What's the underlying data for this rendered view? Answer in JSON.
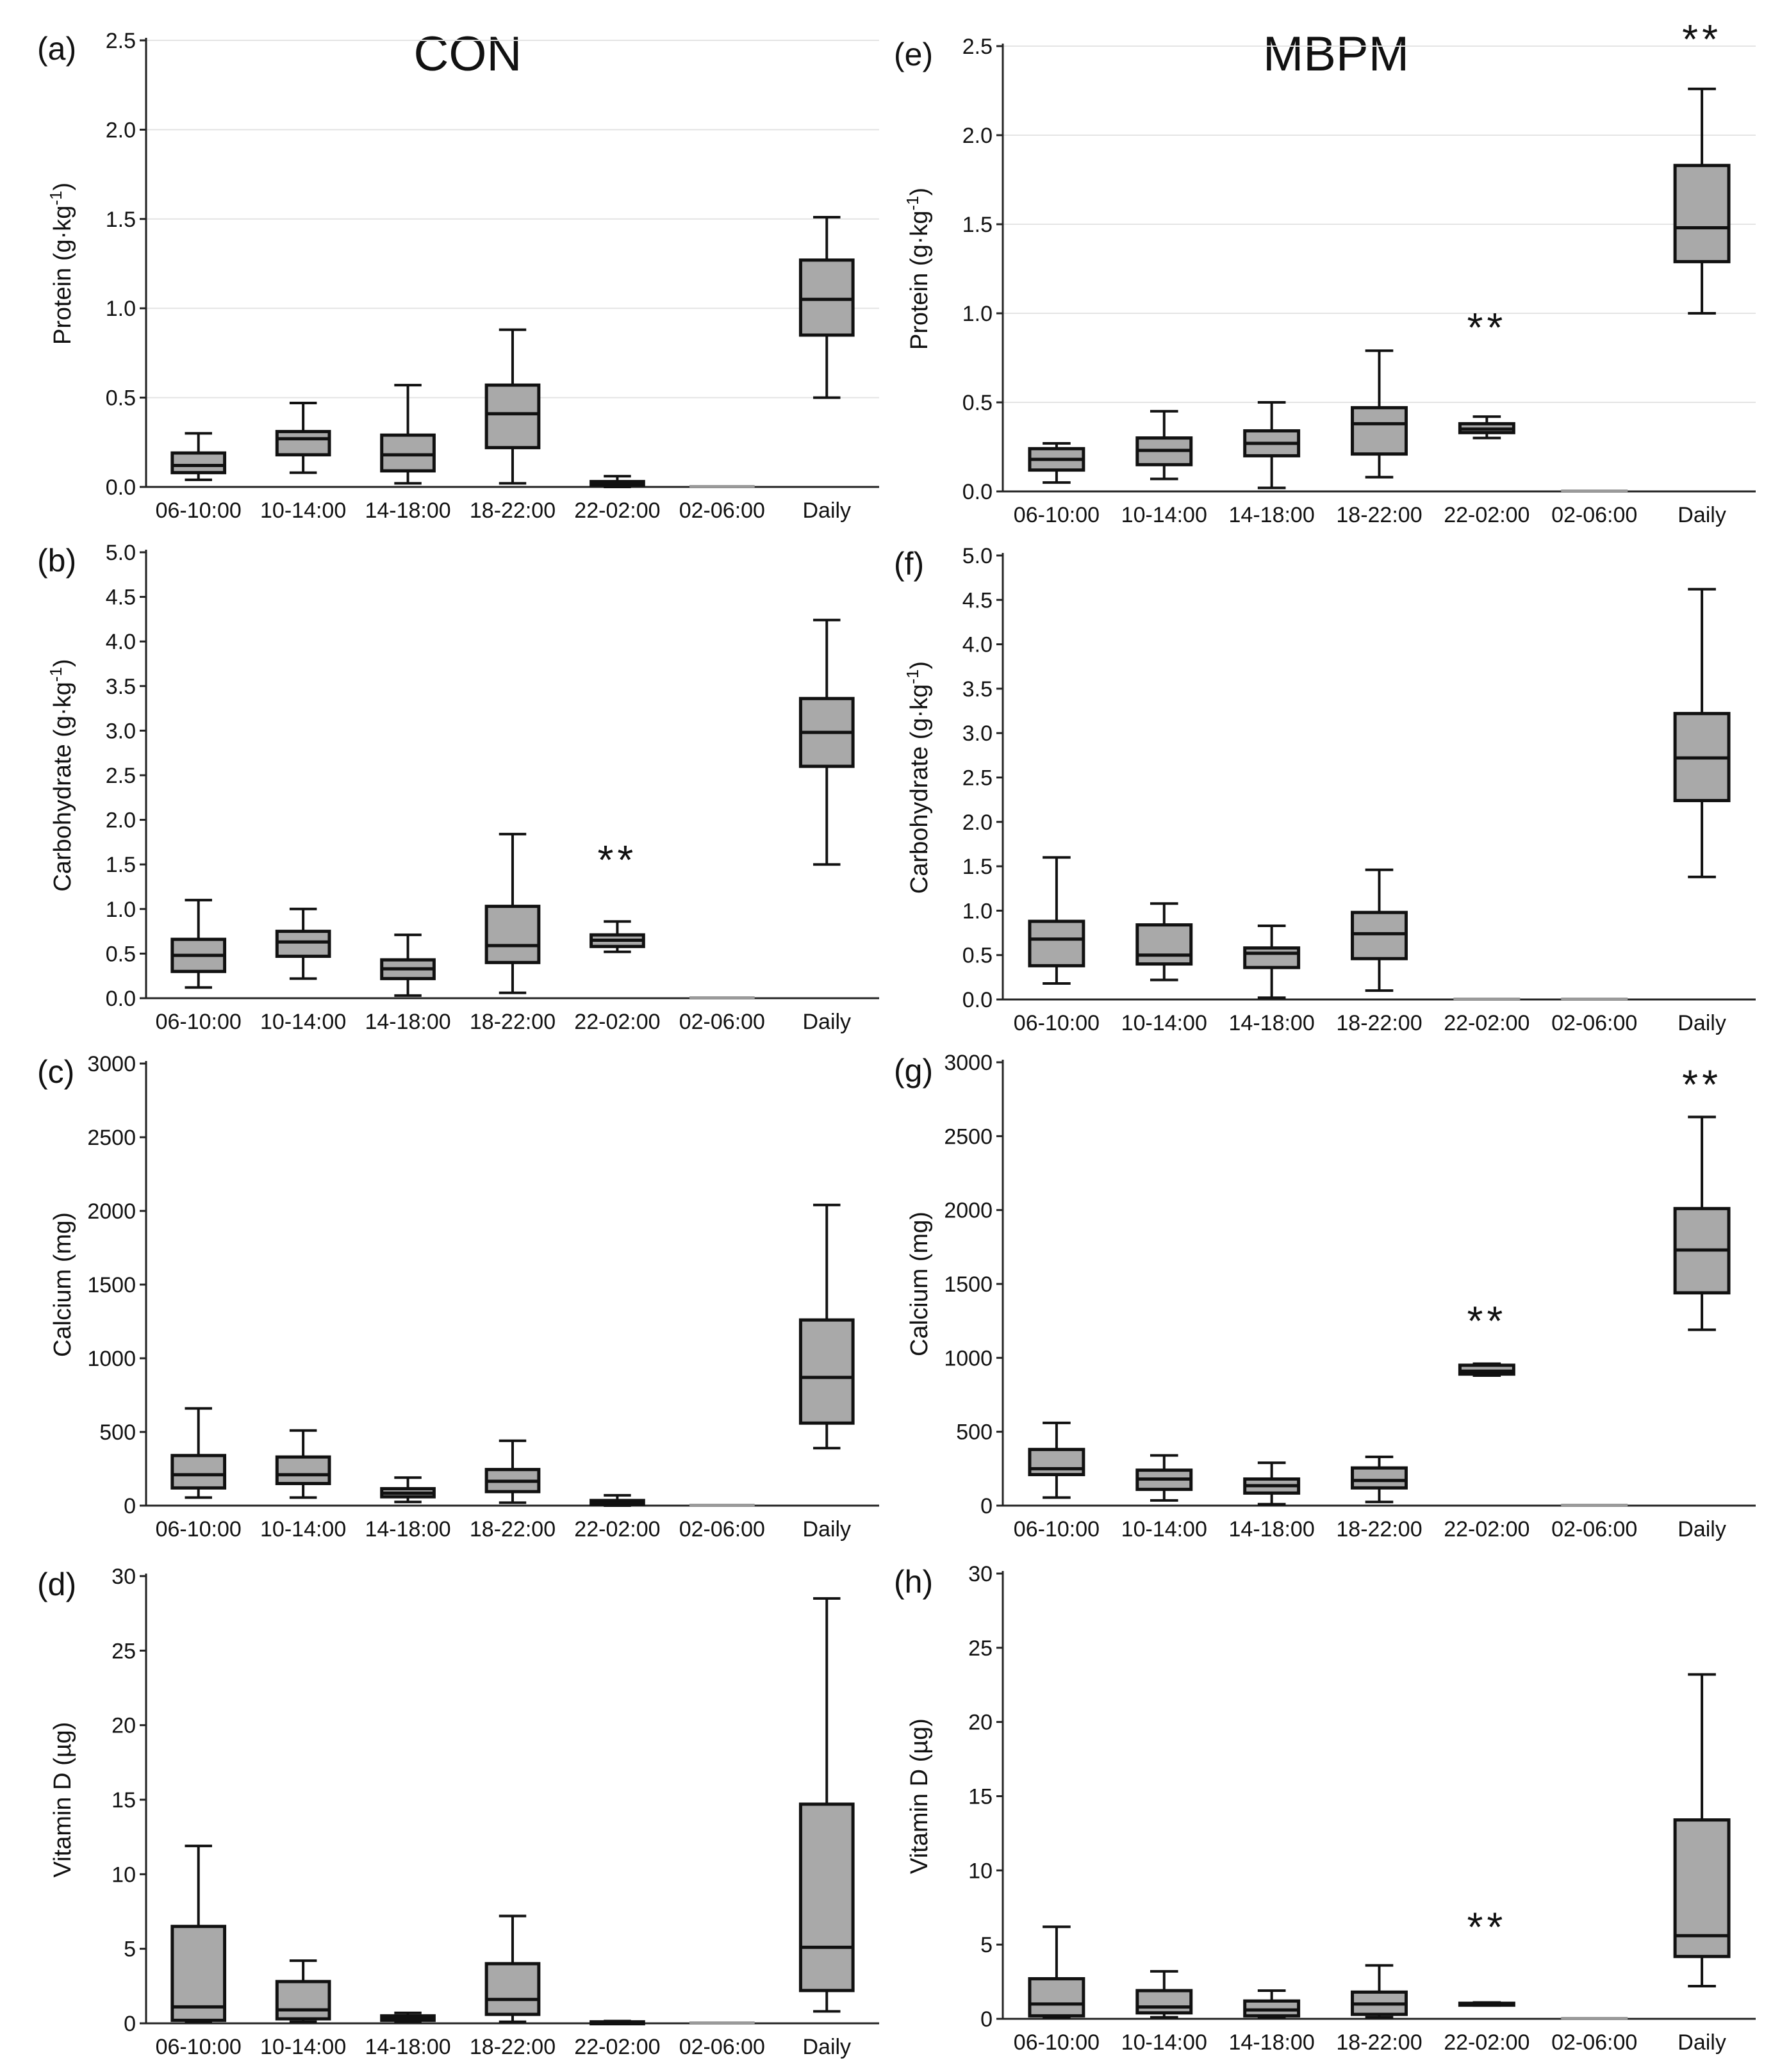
{
  "group_titles": [
    "CON",
    "MBPM"
  ],
  "chart_data": [
    {
      "type": "box",
      "panel": "(a)",
      "group": "CON",
      "ylabel": "Protein (g·kg",
      "ylabel_sup": "-1",
      "ylabel_tail": ")",
      "ylim": [
        0,
        2.5
      ],
      "yticks": [
        "0.0",
        "0.5",
        "1.0",
        "1.5",
        "2.0",
        "2.5"
      ],
      "grid": true,
      "categories": [
        "06-10:00",
        "10-14:00",
        "14-18:00",
        "18-22:00",
        "22-02:00",
        "02-06:00",
        "Daily"
      ],
      "boxes": [
        {
          "min": 0.04,
          "q1": 0.08,
          "median": 0.12,
          "q3": 0.19,
          "max": 0.3
        },
        {
          "min": 0.08,
          "q1": 0.18,
          "median": 0.27,
          "q3": 0.31,
          "max": 0.47
        },
        {
          "min": 0.02,
          "q1": 0.09,
          "median": 0.18,
          "q3": 0.29,
          "max": 0.57
        },
        {
          "min": 0.02,
          "q1": 0.22,
          "median": 0.41,
          "q3": 0.57,
          "max": 0.88
        },
        {
          "min": 0.0,
          "q1": 0.01,
          "median": 0.02,
          "q3": 0.03,
          "max": 0.06
        },
        {
          "min": 0.0,
          "q1": 0.0,
          "median": 0.0,
          "q3": 0.0,
          "max": 0.0
        },
        {
          "min": 0.5,
          "q1": 0.85,
          "median": 1.05,
          "q3": 1.27,
          "max": 1.51
        }
      ],
      "annotations": []
    },
    {
      "type": "box",
      "panel": "(b)",
      "group": "CON",
      "ylabel": "Carbohydrate (g·kg",
      "ylabel_sup": "-1",
      "ylabel_tail": ")",
      "ylim": [
        0,
        5
      ],
      "yticks": [
        "0.0",
        "0.5",
        "1.0",
        "1.5",
        "2.0",
        "2.5",
        "3.0",
        "3.5",
        "4.0",
        "4.5",
        "5.0"
      ],
      "grid": false,
      "categories": [
        "06-10:00",
        "10-14:00",
        "14-18:00",
        "18-22:00",
        "22-02:00",
        "02-06:00",
        "Daily"
      ],
      "boxes": [
        {
          "min": 0.12,
          "q1": 0.3,
          "median": 0.48,
          "q3": 0.66,
          "max": 1.1
        },
        {
          "min": 0.22,
          "q1": 0.47,
          "median": 0.63,
          "q3": 0.75,
          "max": 1.0
        },
        {
          "min": 0.03,
          "q1": 0.22,
          "median": 0.33,
          "q3": 0.43,
          "max": 0.71
        },
        {
          "min": 0.06,
          "q1": 0.4,
          "median": 0.59,
          "q3": 1.03,
          "max": 1.84
        },
        {
          "min": 0.52,
          "q1": 0.58,
          "median": 0.65,
          "q3": 0.71,
          "max": 0.86
        },
        {
          "min": 0.0,
          "q1": 0.0,
          "median": 0.0,
          "q3": 0.0,
          "max": 0.0
        },
        {
          "min": 1.5,
          "q1": 2.6,
          "median": 2.98,
          "q3": 3.36,
          "max": 4.24
        }
      ],
      "annotations": [
        {
          "category": "22-02:00",
          "text": "**",
          "y": 1.55
        }
      ]
    },
    {
      "type": "box",
      "panel": "(c)",
      "group": "CON",
      "ylabel": "Calcium (mg)",
      "ylim": [
        0,
        3000
      ],
      "yticks": [
        "0",
        "500",
        "1000",
        "1500",
        "2000",
        "2500",
        "3000"
      ],
      "grid": false,
      "categories": [
        "06-10:00",
        "10-14:00",
        "14-18:00",
        "18-22:00",
        "22-02:00",
        "02-06:00",
        "Daily"
      ],
      "boxes": [
        {
          "min": 55,
          "q1": 120,
          "median": 210,
          "q3": 340,
          "max": 660
        },
        {
          "min": 55,
          "q1": 150,
          "median": 210,
          "q3": 330,
          "max": 510
        },
        {
          "min": 25,
          "q1": 60,
          "median": 85,
          "q3": 115,
          "max": 190
        },
        {
          "min": 20,
          "q1": 95,
          "median": 165,
          "q3": 245,
          "max": 440
        },
        {
          "min": 0,
          "q1": 8,
          "median": 18,
          "q3": 35,
          "max": 70
        },
        {
          "min": 0,
          "q1": 0,
          "median": 0,
          "q3": 0,
          "max": 0
        },
        {
          "min": 390,
          "q1": 560,
          "median": 870,
          "q3": 1260,
          "max": 2040
        }
      ],
      "annotations": []
    },
    {
      "type": "box",
      "panel": "(d)",
      "group": "CON",
      "ylabel": "Vitamin D (µg)",
      "ylim": [
        0,
        30
      ],
      "yticks": [
        "0",
        "5",
        "10",
        "15",
        "20",
        "25",
        "30"
      ],
      "grid": false,
      "categories": [
        "06-10:00",
        "10-14:00",
        "14-18:00",
        "18-22:00",
        "22-02:00",
        "02-06:00",
        "Daily"
      ],
      "boxes": [
        {
          "min": 0.1,
          "q1": 0.2,
          "median": 1.1,
          "q3": 6.5,
          "max": 11.9
        },
        {
          "min": 0.1,
          "q1": 0.3,
          "median": 0.9,
          "q3": 2.8,
          "max": 4.2
        },
        {
          "min": 0.1,
          "q1": 0.2,
          "median": 0.3,
          "q3": 0.5,
          "max": 0.7
        },
        {
          "min": 0.1,
          "q1": 0.6,
          "median": 1.6,
          "q3": 4.0,
          "max": 7.2
        },
        {
          "min": 0.0,
          "q1": 0.0,
          "median": 0.05,
          "q3": 0.1,
          "max": 0.15
        },
        {
          "min": 0.0,
          "q1": 0.0,
          "median": 0.0,
          "q3": 0.0,
          "max": 0.0
        },
        {
          "min": 0.8,
          "q1": 2.2,
          "median": 5.1,
          "q3": 14.7,
          "max": 28.5
        }
      ],
      "annotations": []
    },
    {
      "type": "box",
      "panel": "(e)",
      "group": "MBPM",
      "ylabel": "Protein (g·kg",
      "ylabel_sup": "-1",
      "ylabel_tail": ")",
      "ylim": [
        0,
        2.5
      ],
      "yticks": [
        "0.0",
        "0.5",
        "1.0",
        "1.5",
        "2.0",
        "2.5"
      ],
      "grid": true,
      "categories": [
        "06-10:00",
        "10-14:00",
        "14-18:00",
        "18-22:00",
        "22-02:00",
        "02-06:00",
        "Daily"
      ],
      "boxes": [
        {
          "min": 0.05,
          "q1": 0.12,
          "median": 0.18,
          "q3": 0.24,
          "max": 0.27
        },
        {
          "min": 0.07,
          "q1": 0.15,
          "median": 0.23,
          "q3": 0.3,
          "max": 0.45
        },
        {
          "min": 0.02,
          "q1": 0.2,
          "median": 0.27,
          "q3": 0.34,
          "max": 0.5
        },
        {
          "min": 0.08,
          "q1": 0.21,
          "median": 0.38,
          "q3": 0.47,
          "max": 0.79
        },
        {
          "min": 0.3,
          "q1": 0.33,
          "median": 0.35,
          "q3": 0.38,
          "max": 0.42
        },
        {
          "min": 0.0,
          "q1": 0.0,
          "median": 0.0,
          "q3": 0.0,
          "max": 0.0
        },
        {
          "min": 1.0,
          "q1": 1.29,
          "median": 1.48,
          "q3": 1.83,
          "max": 2.26
        }
      ],
      "annotations": [
        {
          "category": "22-02:00",
          "text": "**",
          "y": 0.92
        },
        {
          "category": "Daily",
          "text": "**",
          "y": 2.54
        }
      ]
    },
    {
      "type": "box",
      "panel": "(f)",
      "group": "MBPM",
      "ylabel": "Carbohydrate (g·kg",
      "ylabel_sup": "-1",
      "ylabel_tail": ")",
      "ylim": [
        0,
        5
      ],
      "yticks": [
        "0.0",
        "0.5",
        "1.0",
        "1.5",
        "2.0",
        "2.5",
        "3.0",
        "3.5",
        "4.0",
        "4.5",
        "5.0"
      ],
      "grid": false,
      "categories": [
        "06-10:00",
        "10-14:00",
        "14-18:00",
        "18-22:00",
        "22-02:00",
        "02-06:00",
        "Daily"
      ],
      "boxes": [
        {
          "min": 0.18,
          "q1": 0.38,
          "median": 0.68,
          "q3": 0.88,
          "max": 1.6
        },
        {
          "min": 0.22,
          "q1": 0.4,
          "median": 0.5,
          "q3": 0.84,
          "max": 1.08
        },
        {
          "min": 0.02,
          "q1": 0.36,
          "median": 0.52,
          "q3": 0.58,
          "max": 0.83
        },
        {
          "min": 0.1,
          "q1": 0.46,
          "median": 0.74,
          "q3": 0.98,
          "max": 1.46
        },
        {
          "min": 0.0,
          "q1": 0.0,
          "median": 0.0,
          "q3": 0.0,
          "max": 0.0
        },
        {
          "min": 0.0,
          "q1": 0.0,
          "median": 0.0,
          "q3": 0.0,
          "max": 0.0
        },
        {
          "min": 1.38,
          "q1": 2.24,
          "median": 2.72,
          "q3": 3.22,
          "max": 4.62
        }
      ],
      "annotations": []
    },
    {
      "type": "box",
      "panel": "(g)",
      "group": "MBPM",
      "ylabel": "Calcium (mg)",
      "ylim": [
        0,
        3000
      ],
      "yticks": [
        "0",
        "500",
        "1000",
        "1500",
        "2000",
        "2500",
        "3000"
      ],
      "grid": false,
      "categories": [
        "06-10:00",
        "10-14:00",
        "14-18:00",
        "18-22:00",
        "22-02:00",
        "02-06:00",
        "Daily"
      ],
      "boxes": [
        {
          "min": 55,
          "q1": 210,
          "median": 250,
          "q3": 380,
          "max": 560
        },
        {
          "min": 35,
          "q1": 110,
          "median": 180,
          "q3": 240,
          "max": 340
        },
        {
          "min": 10,
          "q1": 85,
          "median": 135,
          "q3": 180,
          "max": 290
        },
        {
          "min": 25,
          "q1": 120,
          "median": 170,
          "q3": 255,
          "max": 330
        },
        {
          "min": 880,
          "q1": 890,
          "median": 910,
          "q3": 950,
          "max": 960
        },
        {
          "min": 0,
          "q1": 0,
          "median": 0,
          "q3": 0,
          "max": 0
        },
        {
          "min": 1190,
          "q1": 1440,
          "median": 1730,
          "q3": 2010,
          "max": 2630
        }
      ],
      "annotations": [
        {
          "category": "22-02:00",
          "text": "**",
          "y": 1250
        },
        {
          "category": "Daily",
          "text": "**",
          "y": 2850
        }
      ]
    },
    {
      "type": "box",
      "panel": "(h)",
      "group": "MBPM",
      "ylabel": "Vitamin D (µg)",
      "ylim": [
        0,
        30
      ],
      "yticks": [
        "0",
        "5",
        "10",
        "15",
        "20",
        "25",
        "30"
      ],
      "grid": false,
      "categories": [
        "06-10:00",
        "10-14:00",
        "14-18:00",
        "18-22:00",
        "22-02:00",
        "02-06:00",
        "Daily"
      ],
      "boxes": [
        {
          "min": 0.1,
          "q1": 0.2,
          "median": 1.0,
          "q3": 2.7,
          "max": 6.2
        },
        {
          "min": 0.1,
          "q1": 0.4,
          "median": 0.8,
          "q3": 1.9,
          "max": 3.2
        },
        {
          "min": 0.1,
          "q1": 0.2,
          "median": 0.6,
          "q3": 1.2,
          "max": 1.9
        },
        {
          "min": 0.1,
          "q1": 0.3,
          "median": 1.0,
          "q3": 1.8,
          "max": 3.6
        },
        {
          "min": 0.9,
          "q1": 0.95,
          "median": 1.0,
          "q3": 1.05,
          "max": 1.1
        },
        {
          "min": 0.0,
          "q1": 0.0,
          "median": 0.0,
          "q3": 0.0,
          "max": 0.0
        },
        {
          "min": 2.2,
          "q1": 4.2,
          "median": 5.6,
          "q3": 13.4,
          "max": 23.2
        }
      ],
      "annotations": [
        {
          "category": "22-02:00",
          "text": "**",
          "y": 6.2
        }
      ]
    }
  ]
}
